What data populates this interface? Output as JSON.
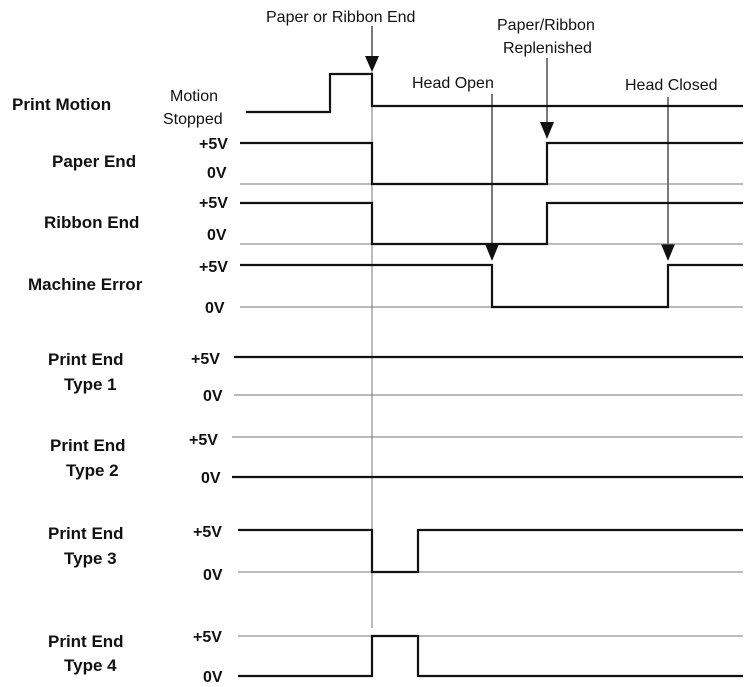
{
  "annotations": {
    "paper_or_ribbon_end": "Paper or Ribbon End",
    "replenished_line1": "Paper/Ribbon",
    "replenished_line2": "Replenished",
    "head_open": "Head Open",
    "head_closed": "Head Closed",
    "motion_line1": "Motion",
    "motion_line2": "Stopped"
  },
  "signals": [
    {
      "id": "print-motion",
      "label": [
        "Print Motion"
      ],
      "high_label": "",
      "low_label": ""
    },
    {
      "id": "paper-end",
      "label": [
        "Paper End"
      ],
      "high_label": "+5V",
      "low_label": "0V"
    },
    {
      "id": "ribbon-end",
      "label": [
        "Ribbon End"
      ],
      "high_label": "+5V",
      "low_label": "0V"
    },
    {
      "id": "machine-error",
      "label": [
        "Machine Error"
      ],
      "high_label": "+5V",
      "low_label": "0V"
    },
    {
      "id": "print-end-1",
      "label": [
        "Print End",
        "Type 1"
      ],
      "high_label": "+5V",
      "low_label": "0V"
    },
    {
      "id": "print-end-2",
      "label": [
        "Print End",
        "Type 2"
      ],
      "high_label": "+5V",
      "low_label": "0V"
    },
    {
      "id": "print-end-3",
      "label": [
        "Print End",
        "Type 3"
      ],
      "high_label": "+5V",
      "low_label": "0V"
    },
    {
      "id": "print-end-4",
      "label": [
        "Print End",
        "Type 4"
      ],
      "high_label": "+5V",
      "low_label": "0V"
    }
  ]
}
